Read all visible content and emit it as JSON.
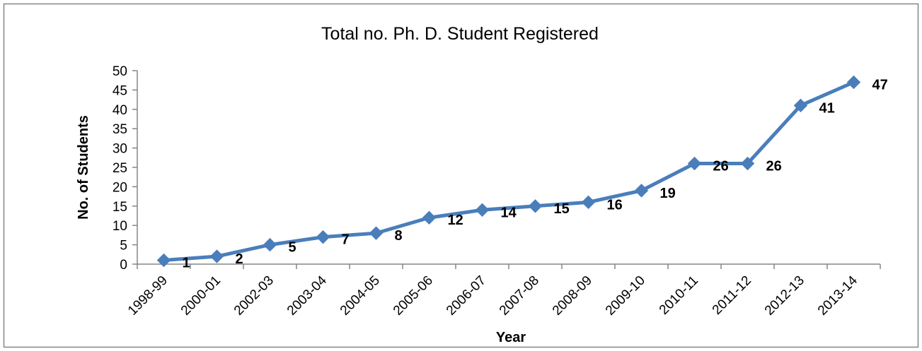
{
  "chart_data": {
    "type": "line",
    "title": "Total no. Ph. D. Student Registered",
    "xlabel": "Year",
    "ylabel": "No. of Students",
    "categories": [
      "1998-99",
      "2000-01",
      "2002-03",
      "2003-04",
      "2004-05",
      "2005-06",
      "2006-07",
      "2007-08",
      "2008-09",
      "2009-10",
      "2010-11",
      "2011-12",
      "2012-13",
      "2013-14"
    ],
    "series": [
      {
        "values": [
          1,
          2,
          5,
          7,
          8,
          12,
          14,
          15,
          16,
          19,
          26,
          26,
          41,
          47
        ],
        "color": "#4a7ebb"
      }
    ],
    "ylim": [
      0,
      50
    ],
    "yticks": [
      0,
      5,
      10,
      15,
      20,
      25,
      30,
      35,
      40,
      45,
      50
    ],
    "grid": false,
    "legend": "none",
    "marker": "diamond",
    "data_labels": true
  },
  "colors": {
    "border": "#868686",
    "axis": "#868686"
  }
}
